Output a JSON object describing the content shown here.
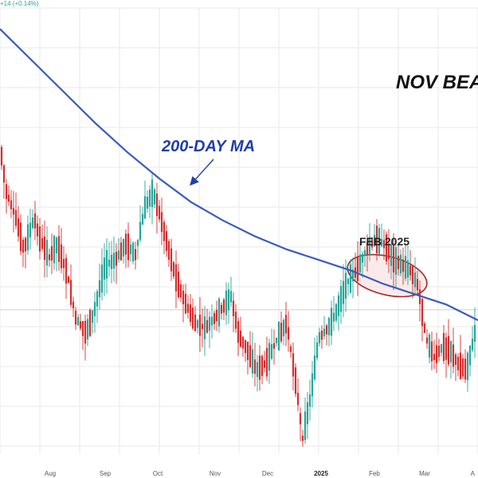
{
  "header": {
    "quote_change": "+14 (+0.14%)"
  },
  "colors": {
    "up": "#26a69a",
    "down": "#d32f2f",
    "ma": "#3a5bbf",
    "ellipse_fill": "#f7d9d9",
    "ellipse_stroke": "#a12b2b",
    "arrow": "#1f3ea8",
    "grid": "#e9e9e9",
    "hline": "#cfcfcf"
  },
  "annotations": {
    "title": "NOV BEA",
    "ma_label": "200-DAY MA",
    "highlight_label": "FEB 2025"
  },
  "chart_data": {
    "type": "candlestick",
    "title": "",
    "xlabel": "",
    "ylabel": "",
    "x_tick_labels": [
      "Aug",
      "Sep",
      "Oct",
      "Nov",
      "Dec",
      "2025",
      "Feb",
      "Mar",
      "A"
    ],
    "grid": true,
    "legend": "none",
    "price_range": [
      0,
      100
    ],
    "price_trajectory": [
      [
        0,
        88
      ],
      [
        8,
        70
      ],
      [
        20,
        60
      ],
      [
        30,
        48
      ],
      [
        43,
        60
      ],
      [
        50,
        52
      ],
      [
        62,
        45
      ],
      [
        72,
        50
      ],
      [
        85,
        38
      ],
      [
        95,
        22
      ],
      [
        108,
        16
      ],
      [
        118,
        24
      ],
      [
        132,
        42
      ],
      [
        145,
        44
      ],
      [
        158,
        50
      ],
      [
        170,
        46
      ],
      [
        182,
        64
      ],
      [
        192,
        70
      ],
      [
        200,
        62
      ],
      [
        210,
        50
      ],
      [
        220,
        38
      ],
      [
        232,
        28
      ],
      [
        245,
        20
      ],
      [
        258,
        18
      ],
      [
        270,
        22
      ],
      [
        280,
        26
      ],
      [
        290,
        30
      ],
      [
        300,
        15
      ],
      [
        310,
        10
      ],
      [
        322,
        2
      ],
      [
        335,
        5
      ],
      [
        348,
        14
      ],
      [
        360,
        20
      ],
      [
        372,
        -4
      ],
      [
        380,
        -24
      ],
      [
        390,
        -8
      ],
      [
        400,
        14
      ],
      [
        412,
        18
      ],
      [
        422,
        24
      ],
      [
        435,
        35
      ],
      [
        448,
        40
      ],
      [
        460,
        48
      ],
      [
        472,
        52
      ],
      [
        482,
        50
      ],
      [
        495,
        44
      ],
      [
        505,
        42
      ],
      [
        515,
        40
      ],
      [
        525,
        34
      ],
      [
        535,
        14
      ],
      [
        545,
        7
      ],
      [
        556,
        11
      ],
      [
        566,
        9
      ],
      [
        576,
        4
      ],
      [
        586,
        2
      ],
      [
        596,
        16
      ]
    ],
    "ma_200": [
      [
        0,
        132
      ],
      [
        40,
        120
      ],
      [
        80,
        108
      ],
      [
        120,
        96
      ],
      [
        160,
        85
      ],
      [
        200,
        75
      ],
      [
        240,
        66
      ],
      [
        280,
        59
      ],
      [
        320,
        53
      ],
      [
        360,
        48
      ],
      [
        400,
        44
      ],
      [
        440,
        40
      ],
      [
        480,
        35
      ],
      [
        520,
        31
      ],
      [
        560,
        27
      ],
      [
        600,
        21
      ]
    ],
    "reference_level": 25
  }
}
